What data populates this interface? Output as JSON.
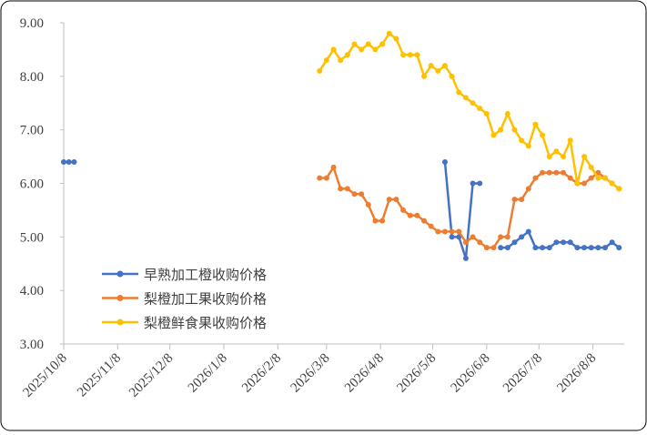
{
  "chart_data": {
    "type": "line",
    "x": [
      "2025/10/8",
      "2025/10/11",
      "2025/10/14",
      "2026/3/4",
      "2026/3/8",
      "2026/3/12",
      "2026/3/16",
      "2026/3/20",
      "2026/3/24",
      "2026/3/28",
      "2026/4/1",
      "2026/4/5",
      "2026/4/9",
      "2026/4/13",
      "2026/4/17",
      "2026/4/21",
      "2026/4/25",
      "2026/4/29",
      "2026/5/3",
      "2026/5/7",
      "2026/5/11",
      "2026/5/15",
      "2026/5/19",
      "2026/5/23",
      "2026/5/27",
      "2026/5/31",
      "2026/6/4",
      "2026/6/8",
      "2026/6/12",
      "2026/6/16",
      "2026/6/20",
      "2026/6/24",
      "2026/6/28",
      "2026/7/2",
      "2026/7/6",
      "2026/7/10",
      "2026/7/14",
      "2026/7/18",
      "2026/7/22",
      "2026/7/26",
      "2026/7/30",
      "2026/8/3",
      "2026/8/7",
      "2026/8/11",
      "2026/8/15",
      "2026/8/19",
      "2026/8/23"
    ],
    "series": [
      {
        "name": "早熟加工橙收购价格",
        "color": "#4472c4",
        "values": [
          6.4,
          6.4,
          6.4,
          null,
          null,
          null,
          null,
          null,
          null,
          null,
          null,
          null,
          null,
          null,
          null,
          null,
          null,
          null,
          null,
          null,
          null,
          6.4,
          5.0,
          5.0,
          4.6,
          6.0,
          6.0,
          null,
          null,
          4.8,
          4.8,
          4.9,
          5.0,
          5.1,
          4.8,
          4.8,
          4.8,
          4.9,
          4.9,
          4.9,
          4.8,
          4.8,
          4.8,
          4.8,
          4.8,
          4.9,
          4.8
        ]
      },
      {
        "name": "梨橙加工果收购价格",
        "color": "#ed7d31",
        "values": [
          null,
          null,
          null,
          6.1,
          6.1,
          6.3,
          5.9,
          5.9,
          5.8,
          5.8,
          5.6,
          5.3,
          5.3,
          5.7,
          5.7,
          5.5,
          5.4,
          5.4,
          5.3,
          5.2,
          5.1,
          5.1,
          5.1,
          5.1,
          4.9,
          5.0,
          4.9,
          4.8,
          4.8,
          5.0,
          5.0,
          5.7,
          5.7,
          5.9,
          6.1,
          6.2,
          6.2,
          6.2,
          6.2,
          6.1,
          6.0,
          6.0,
          6.1,
          6.2,
          6.1,
          6.0,
          5.9
        ]
      },
      {
        "name": "梨橙鲜食果收购价格",
        "color": "#ffc000",
        "values": [
          null,
          null,
          null,
          8.1,
          8.3,
          8.5,
          8.3,
          8.4,
          8.6,
          8.5,
          8.6,
          8.5,
          8.6,
          8.8,
          8.7,
          8.4,
          8.4,
          8.4,
          8.0,
          8.2,
          8.1,
          8.2,
          8.0,
          7.7,
          7.6,
          7.5,
          7.4,
          7.3,
          6.9,
          7.0,
          7.3,
          7.0,
          6.8,
          6.7,
          7.1,
          6.9,
          6.5,
          6.6,
          6.5,
          6.8,
          6.0,
          6.5,
          6.3,
          6.1,
          6.1,
          6.0,
          5.9
        ]
      }
    ],
    "xlim": [
      "2025/10/8",
      "2026/8/26"
    ],
    "xticks": [
      "2025/10/8",
      "2025/11/8",
      "2025/12/8",
      "2026/1/8",
      "2026/2/8",
      "2026/3/8",
      "2026/4/8",
      "2026/5/8",
      "2026/6/8",
      "2026/7/8",
      "2026/8/8"
    ],
    "ylim": [
      3,
      9
    ],
    "yticks": [
      {
        "value": 3,
        "label": "3.00"
      },
      {
        "value": 4,
        "label": "4.00"
      },
      {
        "value": 5,
        "label": "5.00"
      },
      {
        "value": 6,
        "label": "6.00"
      },
      {
        "value": 7,
        "label": "7.00"
      },
      {
        "value": 8,
        "label": "8.00"
      },
      {
        "value": 9,
        "label": "9.00"
      }
    ],
    "legend": "lower-left"
  }
}
